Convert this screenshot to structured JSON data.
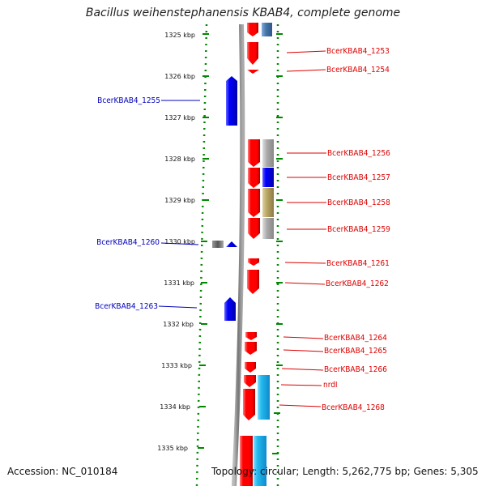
{
  "title": "Bacillus weihenstephanensis KBAB4, complete genome",
  "footer": {
    "accession": "Accession: NC_010184",
    "topology": "Topology: circular; Length: 5,262,775 bp; Genes: 5,305"
  },
  "colors": {
    "red_gene": "#ff0000",
    "blue_gene": "#0000ff",
    "light_blue_gene": "#22bbee",
    "steel_blue_gene": "#4477aa",
    "gray_gene": "#aaaaaa",
    "olive_gene": "#b8a664",
    "dark_gray_gene": "#666666",
    "dotted_line": "#008800",
    "backbone": "#888888",
    "label_red": "#dd0000",
    "label_blue": "#0000bb"
  },
  "kbp_ticks": [
    "1325 kbp",
    "1326 kbp",
    "1327 kbp",
    "1328 kbp",
    "1329 kbp",
    "1330 kbp",
    "1331 kbp",
    "1332 kbp",
    "1333 kbp",
    "1334 kbp",
    "1335 kbp"
  ],
  "right_labels": [
    "BcerKBAB4_1253",
    "BcerKBAB4_1254",
    "BcerKBAB4_1256",
    "BcerKBAB4_1257",
    "BcerKBAB4_1258",
    "BcerKBAB4_1259",
    "BcerKBAB4_1261",
    "BcerKBAB4_1262",
    "BcerKBAB4_1264",
    "BcerKBAB4_1265",
    "BcerKBAB4_1266",
    "nrdI",
    "BcerKBAB4_1268"
  ],
  "left_labels": [
    "BcerKBAB4_1255",
    "BcerKBAB4_1260",
    "BcerKBAB4_1263"
  ]
}
